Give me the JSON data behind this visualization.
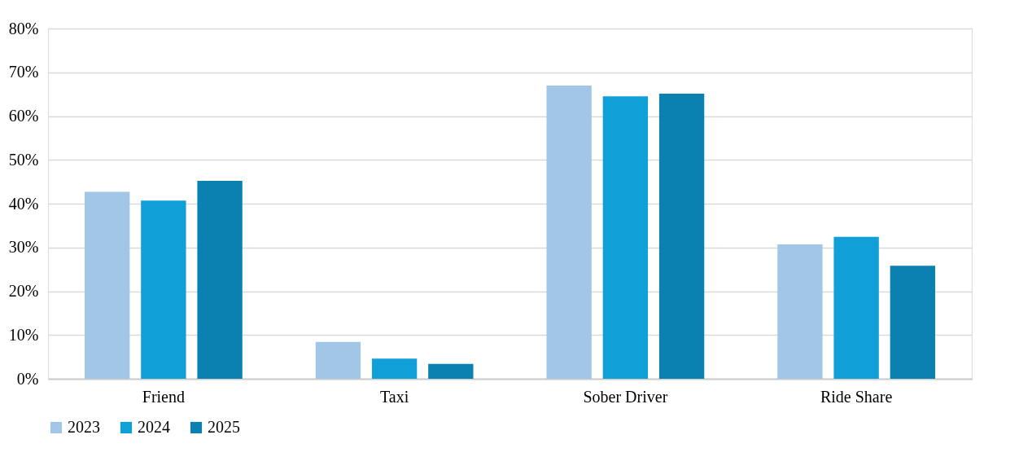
{
  "chart_data": {
    "type": "bar",
    "categories": [
      "Friend",
      "Taxi",
      "Sober Driver",
      "Ride Share"
    ],
    "series": [
      {
        "name": "2023",
        "color": "#a2c7e6",
        "values": [
          42.7,
          8.4,
          67.0,
          30.7
        ]
      },
      {
        "name": "2024",
        "color": "#109fd7",
        "values": [
          40.7,
          4.6,
          64.5,
          32.4
        ]
      },
      {
        "name": "2025",
        "color": "#0a81b0",
        "values": [
          45.2,
          3.4,
          65.1,
          25.8
        ]
      }
    ],
    "ylim": [
      0,
      80
    ],
    "yticks": [
      {
        "value": 0,
        "label": "0%"
      },
      {
        "value": 10,
        "label": "10%"
      },
      {
        "value": 20,
        "label": "20%"
      },
      {
        "value": 30,
        "label": "30%"
      },
      {
        "value": 40,
        "label": "40%"
      },
      {
        "value": 50,
        "label": "50%"
      },
      {
        "value": 60,
        "label": "60%"
      },
      {
        "value": 70,
        "label": "70%"
      },
      {
        "value": 80,
        "label": "80%"
      }
    ],
    "grid": "y",
    "legend": "bottom"
  }
}
